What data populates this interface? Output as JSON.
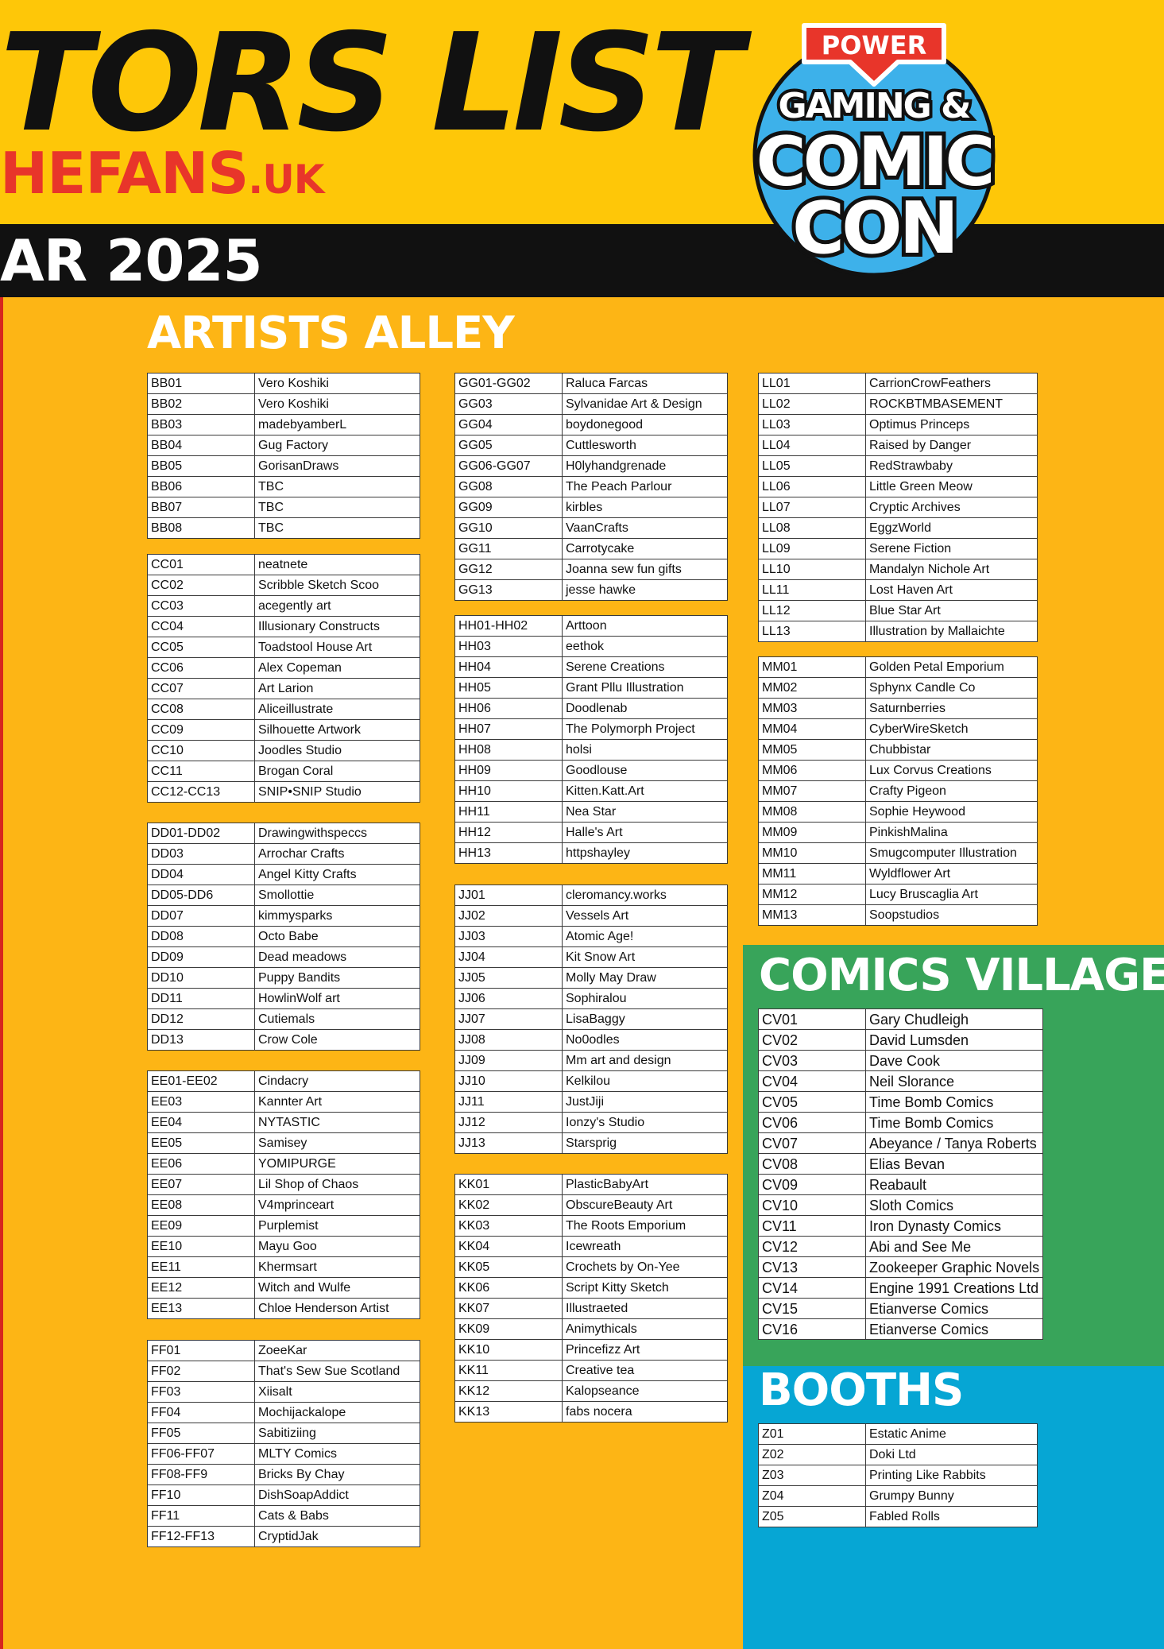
{
  "header": {
    "title": "TORS LIST",
    "url_main": "HEFANS",
    "url_tld": ".UK",
    "date": "AR 2025"
  },
  "logo": {
    "banner": "POWER",
    "line1": "GAMING &",
    "line2": "COMIC",
    "line3": "CON"
  },
  "colors": {
    "background": "#fdb515",
    "top_band": "#fec708",
    "url_red": "#e8352a",
    "comics_village_green": "#38a45a",
    "booths_blue": "#06a6d4",
    "logo_blue": "#3db1ea"
  },
  "artists_alley": {
    "title": "ARTISTS ALLEY",
    "groups": [
      {
        "rows": [
          [
            "BB01",
            "Vero Koshiki"
          ],
          [
            "BB02",
            "Vero Koshiki"
          ],
          [
            "BB03",
            "madebyamberL"
          ],
          [
            "BB04",
            "Gug Factory"
          ],
          [
            "BB05",
            "GorisanDraws"
          ],
          [
            "BB06",
            "TBC"
          ],
          [
            "BB07",
            "TBC"
          ],
          [
            "BB08",
            "TBC"
          ]
        ]
      },
      {
        "rows": [
          [
            "CC01",
            "neatnete"
          ],
          [
            "CC02",
            "Scribble Sketch Scoo"
          ],
          [
            "CC03",
            "acegently art"
          ],
          [
            "CC04",
            "Illusionary Constructs"
          ],
          [
            "CC05",
            "Toadstool House Art"
          ],
          [
            "CC06",
            "Alex Copeman"
          ],
          [
            "CC07",
            "Art Larion"
          ],
          [
            "CC08",
            "Aliceillustrate"
          ],
          [
            "CC09",
            "Silhouette Artwork"
          ],
          [
            "CC10",
            "Joodles Studio"
          ],
          [
            "CC11",
            "Brogan Coral"
          ],
          [
            "CC12-CC13",
            "SNIP•SNIP Studio"
          ]
        ]
      },
      {
        "rows": [
          [
            "DD01-DD02",
            "Drawingwithspeccs"
          ],
          [
            "DD03",
            "Arrochar Crafts"
          ],
          [
            "DD04",
            "Angel Kitty Crafts"
          ],
          [
            "DD05-DD6",
            "Smollottie"
          ],
          [
            "DD07",
            "kimmysparks"
          ],
          [
            "DD08",
            "Octo Babe"
          ],
          [
            "DD09",
            "Dead meadows"
          ],
          [
            "DD10",
            "Puppy Bandits"
          ],
          [
            "DD11",
            "HowlinWolf art"
          ],
          [
            "DD12",
            "Cutiemals"
          ],
          [
            "DD13",
            "Crow Cole"
          ]
        ]
      },
      {
        "rows": [
          [
            "EE01-EE02",
            "Cindacry"
          ],
          [
            "EE03",
            "Kannter Art"
          ],
          [
            "EE04",
            "NYTASTIC"
          ],
          [
            "EE05",
            "Samisey"
          ],
          [
            "EE06",
            "YOMIPURGE"
          ],
          [
            "EE07",
            "Lil Shop of Chaos"
          ],
          [
            "EE08",
            "V4mprinceart"
          ],
          [
            "EE09",
            "Purplemist"
          ],
          [
            "EE10",
            "Mayu Goo"
          ],
          [
            "EE11",
            "Khermsart"
          ],
          [
            "EE12",
            "Witch and Wulfe"
          ],
          [
            "EE13",
            "Chloe Henderson Artist"
          ]
        ]
      },
      {
        "rows": [
          [
            "FF01",
            "ZoeeKar"
          ],
          [
            "FF02",
            "That's Sew Sue Scotland"
          ],
          [
            "FF03",
            "Xiisalt"
          ],
          [
            "FF04",
            "Mochijackalope"
          ],
          [
            "FF05",
            "Sabitiziing"
          ],
          [
            "FF06-FF07",
            "MLTY Comics"
          ],
          [
            "FF08-FF9",
            "Bricks By Chay"
          ],
          [
            "FF10",
            "DishSoapAddict"
          ],
          [
            "FF11",
            "Cats & Babs"
          ],
          [
            "FF12-FF13",
            "CryptidJak"
          ]
        ]
      },
      {
        "rows": [
          [
            "GG01-GG02",
            "Raluca Farcas"
          ],
          [
            "GG03",
            "Sylvanidae Art & Design"
          ],
          [
            "GG04",
            "boydonegood"
          ],
          [
            "GG05",
            "Cuttlesworth"
          ],
          [
            "GG06-GG07",
            "H0lyhandgrenade"
          ],
          [
            "GG08",
            "The Peach Parlour"
          ],
          [
            "GG09",
            "kirbles"
          ],
          [
            "GG10",
            "VaanCrafts"
          ],
          [
            "GG11",
            "Carrotycake"
          ],
          [
            "GG12",
            "Joanna sew fun gifts"
          ],
          [
            "GG13",
            "jesse hawke"
          ]
        ]
      },
      {
        "rows": [
          [
            "HH01-HH02",
            "Arttoon"
          ],
          [
            "HH03",
            "eethok"
          ],
          [
            "HH04",
            "Serene Creations"
          ],
          [
            "HH05",
            "Grant Pllu Illustration"
          ],
          [
            "HH06",
            "Doodlenab"
          ],
          [
            "HH07",
            "The Polymorph Project"
          ],
          [
            "HH08",
            "holsi"
          ],
          [
            "HH09",
            "Goodlouse"
          ],
          [
            "HH10",
            "Kitten.Katt.Art"
          ],
          [
            "HH11",
            "Nea Star"
          ],
          [
            "HH12",
            "Halle's Art"
          ],
          [
            "HH13",
            "httpshayley"
          ]
        ]
      },
      {
        "rows": [
          [
            "JJ01",
            "cleromancy.works"
          ],
          [
            "JJ02",
            "Vessels Art"
          ],
          [
            "JJ03",
            "Atomic Age!"
          ],
          [
            "JJ04",
            "Kit Snow Art"
          ],
          [
            "JJ05",
            "Molly May Draw"
          ],
          [
            "JJ06",
            "Sophiralou"
          ],
          [
            "JJ07",
            "LisaBaggy"
          ],
          [
            "JJ08",
            "No0odles"
          ],
          [
            "JJ09",
            "Mm art and design"
          ],
          [
            "JJ10",
            "Kelkilou"
          ],
          [
            "JJ11",
            "JustJiji"
          ],
          [
            "JJ12",
            "Ionzy's Studio"
          ],
          [
            "JJ13",
            "Starsprig"
          ]
        ]
      },
      {
        "rows": [
          [
            "KK01",
            "PlasticBabyArt"
          ],
          [
            "KK02",
            "ObscureBeauty Art"
          ],
          [
            "KK03",
            "The Roots Emporium"
          ],
          [
            "KK04",
            "Icewreath"
          ],
          [
            "KK05",
            "Crochets by On-Yee"
          ],
          [
            "KK06",
            "Script Kitty Sketch"
          ],
          [
            "KK07",
            "Illustraeted"
          ],
          [
            "KK09",
            "Animythicals"
          ],
          [
            "KK10",
            "Princefizz Art"
          ],
          [
            "KK11",
            "Creative tea"
          ],
          [
            "KK12",
            "Kalopseance"
          ],
          [
            "KK13",
            "fabs nocera"
          ]
        ]
      },
      {
        "rows": [
          [
            "LL01",
            "CarrionCrowFeathers"
          ],
          [
            "LL02",
            "ROCKBTMBASEMENT"
          ],
          [
            "LL03",
            "Optimus Princeps"
          ],
          [
            "LL04",
            "Raised by Danger"
          ],
          [
            "LL05",
            "RedStrawbaby"
          ],
          [
            "LL06",
            "Little Green Meow"
          ],
          [
            "LL07",
            "Cryptic Archives"
          ],
          [
            "LL08",
            "EggzWorld"
          ],
          [
            "LL09",
            "Serene Fiction"
          ],
          [
            "LL10",
            "Mandalyn Nichole Art"
          ],
          [
            "LL11",
            "Lost Haven Art"
          ],
          [
            "LL12",
            "Blue Star Art"
          ],
          [
            "LL13",
            "Illustration by Mallaichte"
          ]
        ]
      },
      {
        "rows": [
          [
            "MM01",
            "Golden Petal Emporium"
          ],
          [
            "MM02",
            "Sphynx Candle Co"
          ],
          [
            "MM03",
            "Saturnberries"
          ],
          [
            "MM04",
            "CyberWireSketch"
          ],
          [
            "MM05",
            "Chubbistar"
          ],
          [
            "MM06",
            "Lux Corvus Creations"
          ],
          [
            "MM07",
            "Crafty Pigeon"
          ],
          [
            "MM08",
            "Sophie Heywood"
          ],
          [
            "MM09",
            "PinkishMalina"
          ],
          [
            "MM10",
            "Smugcomputer Illustration"
          ],
          [
            "MM11",
            "Wyldflower Art"
          ],
          [
            "MM12",
            "Lucy Bruscaglia Art"
          ],
          [
            "MM13",
            "Soopstudios"
          ]
        ]
      }
    ]
  },
  "comics_village": {
    "title": "COMICS VILLAGE",
    "rows": [
      [
        "CV01",
        "Gary Chudleigh"
      ],
      [
        "CV02",
        "David Lumsden"
      ],
      [
        "CV03",
        "Dave Cook"
      ],
      [
        "CV04",
        "Neil Slorance"
      ],
      [
        "CV05",
        "Time Bomb Comics"
      ],
      [
        "CV06",
        "Time Bomb Comics"
      ],
      [
        "CV07",
        "Abeyance / Tanya Roberts"
      ],
      [
        "CV08",
        "Elias Bevan"
      ],
      [
        "CV09",
        "Reabault"
      ],
      [
        "CV10",
        "Sloth Comics"
      ],
      [
        "CV11",
        "Iron Dynasty Comics"
      ],
      [
        "CV12",
        "Abi and See Me"
      ],
      [
        "CV13",
        "Zookeeper Graphic Novels"
      ],
      [
        "CV14",
        "Engine 1991 Creations Ltd"
      ],
      [
        "CV15",
        "Etianverse Comics"
      ],
      [
        "CV16",
        "Etianverse Comics"
      ]
    ]
  },
  "booths": {
    "title": "BOOTHS",
    "rows": [
      [
        "Z01",
        "Estatic Anime"
      ],
      [
        "Z02",
        "Doki Ltd"
      ],
      [
        "Z03",
        "Printing Like Rabbits"
      ],
      [
        "Z04",
        "Grumpy Bunny"
      ],
      [
        "Z05",
        "Fabled Rolls"
      ]
    ]
  }
}
